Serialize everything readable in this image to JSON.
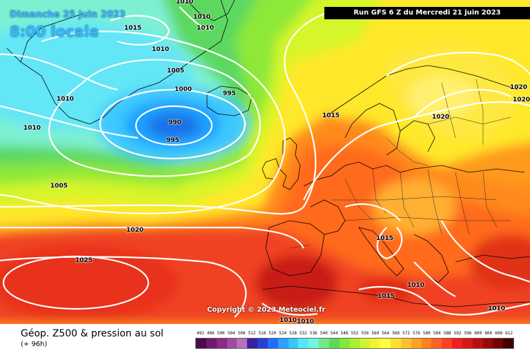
{
  "header": {
    "date": "Dimanche 25 juin 2023",
    "time": "8:00 locale",
    "run": "Run GFS 6 Z du Mercredi 21 juin 2023"
  },
  "copyright": "Copyright © 2023 Meteociel.fr",
  "footer": {
    "product": "Géop. Z500 & pression au sol",
    "lead": "(+ 96h)"
  },
  "isobar_labels": [
    {
      "text": "1010"
    },
    {
      "text": "1015"
    },
    {
      "text": "1010"
    },
    {
      "text": "1010"
    },
    {
      "text": "1010"
    },
    {
      "text": "1005"
    },
    {
      "text": "1000"
    },
    {
      "text": "995"
    },
    {
      "text": "1010"
    },
    {
      "text": "990"
    },
    {
      "text": "995"
    },
    {
      "text": "1010"
    },
    {
      "text": "1005"
    },
    {
      "text": "1015"
    },
    {
      "text": "1020"
    },
    {
      "text": "1020"
    },
    {
      "text": "1020"
    },
    {
      "text": "1020"
    },
    {
      "text": "1025"
    },
    {
      "text": "1015"
    },
    {
      "text": "1010"
    },
    {
      "text": "1015"
    },
    {
      "text": "1010"
    },
    {
      "text": "1010"
    },
    {
      "text": "1010"
    }
  ],
  "scale": {
    "labels": [
      "492",
      "496",
      "500",
      "504",
      "508",
      "512",
      "516",
      "520",
      "524",
      "528",
      "532",
      "536",
      "540",
      "544",
      "548",
      "552",
      "556",
      "560",
      "564",
      "568",
      "572",
      "576",
      "580",
      "584",
      "588",
      "592",
      "596",
      "600",
      "604",
      "608",
      "612"
    ],
    "colors": [
      "#4b0a4b",
      "#6e1a6e",
      "#8a2a8a",
      "#a24aa2",
      "#b870b8",
      "#3a1fa0",
      "#2a3fd0",
      "#1f6fff",
      "#2aa0ff",
      "#34c8ff",
      "#55e6ff",
      "#70f5e0",
      "#6fe88a",
      "#5fd85a",
      "#7fea3a",
      "#a8f030",
      "#d0f530",
      "#f0f530",
      "#ffff40",
      "#ffe030",
      "#ffc030",
      "#ffa020",
      "#ff8020",
      "#ff6020",
      "#ff4020",
      "#f02020",
      "#d81818",
      "#b81010",
      "#980808",
      "#700404",
      "#400000"
    ]
  }
}
